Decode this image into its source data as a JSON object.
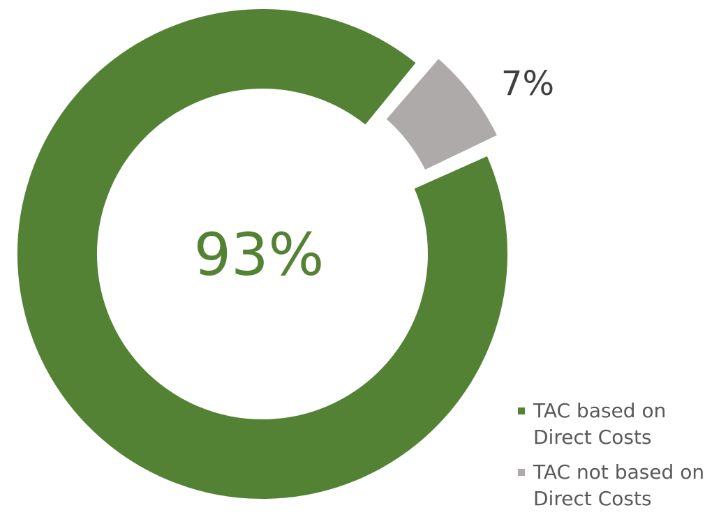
{
  "chart_data": {
    "type": "pie",
    "title": "",
    "center_label": "93%",
    "categories": [
      "TAC based on Direct Costs",
      "TAC not based on Direct Costs"
    ],
    "values": [
      93,
      7
    ],
    "data_labels": [
      "93%",
      "7%"
    ],
    "colors": [
      "#548235",
      "#AEAAAA"
    ],
    "label_colors": [
      "#548235",
      "#404040"
    ],
    "exploded": [
      false,
      true
    ],
    "donut": true,
    "legend": "bottom-right"
  }
}
